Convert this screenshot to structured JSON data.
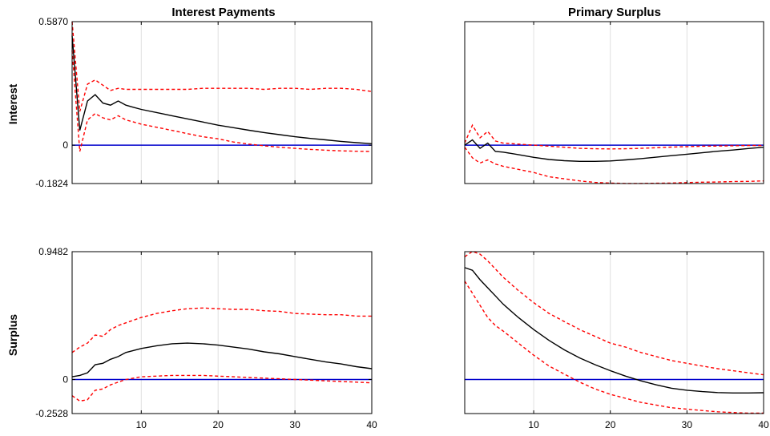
{
  "colors": {
    "median": "#000000",
    "bands": "#ff0000",
    "zero_line": "#0000cc",
    "grid": "#e0e0e0",
    "axes": "#000000",
    "background": "#ffffff"
  },
  "row_labels": [
    "Interest",
    "Surplus"
  ],
  "chart_data": [
    {
      "type": "line",
      "title": "Interest Payments",
      "row_label": "Interest",
      "xlim": [
        1,
        40
      ],
      "ylim": [
        -0.1824,
        0.587
      ],
      "xticks": [
        10,
        20,
        30,
        40
      ],
      "xtick_labels": [],
      "yticks": [
        0.587,
        0,
        -0.1824
      ],
      "ytick_labels": [
        "0.5870",
        "0",
        "-0.1824"
      ],
      "grid": "vertical",
      "series": [
        {
          "x": [
            1,
            2,
            3,
            4,
            5,
            6,
            7,
            8,
            9,
            10,
            12,
            14,
            16,
            18,
            20,
            22,
            24,
            26,
            28,
            30,
            32,
            34,
            36,
            38,
            40
          ],
          "values": [
            0.52,
            0.07,
            0.21,
            0.24,
            0.2,
            0.19,
            0.21,
            0.19,
            0.18,
            0.17,
            0.155,
            0.14,
            0.125,
            0.11,
            0.095,
            0.083,
            0.071,
            0.06,
            0.05,
            0.04,
            0.032,
            0.025,
            0.018,
            0.012,
            0.007
          ],
          "style": "solid"
        },
        {
          "x": [
            1,
            2,
            3,
            4,
            5,
            6,
            7,
            8,
            9,
            10,
            12,
            14,
            16,
            18,
            20,
            22,
            24,
            26,
            28,
            30,
            32,
            34,
            36,
            38,
            40
          ],
          "values": [
            0.587,
            0.16,
            0.29,
            0.31,
            0.285,
            0.26,
            0.27,
            0.265,
            0.265,
            0.265,
            0.265,
            0.265,
            0.265,
            0.27,
            0.27,
            0.27,
            0.27,
            0.265,
            0.27,
            0.27,
            0.265,
            0.27,
            0.27,
            0.265,
            0.255
          ],
          "style": "dashed"
        },
        {
          "x": [
            1,
            2,
            3,
            4,
            5,
            6,
            7,
            8,
            9,
            10,
            12,
            14,
            16,
            18,
            20,
            22,
            24,
            26,
            28,
            30,
            32,
            34,
            36,
            38,
            40
          ],
          "values": [
            0.45,
            -0.03,
            0.12,
            0.15,
            0.13,
            0.12,
            0.14,
            0.12,
            0.11,
            0.1,
            0.085,
            0.07,
            0.055,
            0.04,
            0.03,
            0.015,
            0.005,
            -0.003,
            -0.01,
            -0.015,
            -0.02,
            -0.024,
            -0.027,
            -0.029,
            -0.03
          ],
          "style": "dashed"
        }
      ],
      "zero_line": 0
    },
    {
      "type": "line",
      "title": "Primary Surplus",
      "row_label": "",
      "xlim": [
        1,
        40
      ],
      "ylim": [
        -0.1824,
        0.587
      ],
      "xticks": [
        10,
        20,
        30,
        40
      ],
      "xtick_labels": [],
      "yticks": [],
      "ytick_labels": [],
      "grid": "vertical",
      "series": [
        {
          "x": [
            1,
            2,
            3,
            4,
            5,
            6,
            8,
            10,
            12,
            14,
            16,
            18,
            20,
            22,
            24,
            26,
            28,
            30,
            32,
            34,
            36,
            38,
            40
          ],
          "values": [
            0,
            0.025,
            -0.015,
            0.01,
            -0.03,
            -0.033,
            -0.045,
            -0.058,
            -0.068,
            -0.074,
            -0.077,
            -0.077,
            -0.075,
            -0.07,
            -0.064,
            -0.057,
            -0.05,
            -0.043,
            -0.036,
            -0.029,
            -0.023,
            -0.016,
            -0.01
          ],
          "style": "solid"
        },
        {
          "x": [
            1,
            2,
            3,
            4,
            5,
            6,
            8,
            10,
            12,
            14,
            16,
            18,
            20,
            22,
            24,
            26,
            28,
            30,
            32,
            34,
            36,
            38,
            40
          ],
          "values": [
            0.01,
            0.095,
            0.035,
            0.065,
            0.02,
            0.01,
            0.005,
            0,
            -0.005,
            -0.01,
            -0.015,
            -0.017,
            -0.018,
            -0.017,
            -0.015,
            -0.012,
            -0.009,
            -0.007,
            -0.005,
            -0.004,
            -0.003,
            -0.002,
            -0.002
          ],
          "style": "dashed"
        },
        {
          "x": [
            1,
            2,
            3,
            4,
            5,
            6,
            8,
            10,
            12,
            14,
            16,
            18,
            20,
            22,
            24,
            26,
            28,
            30,
            32,
            34,
            36,
            38,
            40
          ],
          "values": [
            -0.01,
            -0.06,
            -0.085,
            -0.07,
            -0.09,
            -0.1,
            -0.115,
            -0.13,
            -0.15,
            -0.16,
            -0.17,
            -0.177,
            -0.18,
            -0.182,
            -0.182,
            -0.181,
            -0.18,
            -0.178,
            -0.176,
            -0.175,
            -0.173,
            -0.172,
            -0.17
          ],
          "style": "dashed"
        }
      ],
      "zero_line": 0
    },
    {
      "type": "line",
      "title": "",
      "row_label": "Surplus",
      "xlim": [
        1,
        40
      ],
      "ylim": [
        -0.2528,
        0.9482
      ],
      "xticks": [
        10,
        20,
        30,
        40
      ],
      "xtick_labels": [
        "10",
        "20",
        "30",
        "40"
      ],
      "yticks": [
        0.9482,
        0,
        -0.2528
      ],
      "ytick_labels": [
        "0.9482",
        "0",
        "-0.2528"
      ],
      "grid": "vertical",
      "series": [
        {
          "x": [
            1,
            2,
            3,
            4,
            5,
            6,
            7,
            8,
            10,
            12,
            14,
            16,
            18,
            20,
            22,
            24,
            26,
            28,
            30,
            32,
            34,
            36,
            38,
            40
          ],
          "values": [
            0.02,
            0.03,
            0.05,
            0.11,
            0.12,
            0.15,
            0.17,
            0.2,
            0.23,
            0.25,
            0.265,
            0.27,
            0.265,
            0.255,
            0.24,
            0.225,
            0.205,
            0.19,
            0.17,
            0.15,
            0.13,
            0.115,
            0.095,
            0.08
          ],
          "style": "solid"
        },
        {
          "x": [
            1,
            2,
            3,
            4,
            5,
            6,
            7,
            8,
            10,
            12,
            14,
            16,
            18,
            20,
            22,
            24,
            26,
            28,
            30,
            32,
            34,
            36,
            38,
            40
          ],
          "values": [
            0.2,
            0.24,
            0.27,
            0.33,
            0.32,
            0.37,
            0.4,
            0.42,
            0.46,
            0.49,
            0.51,
            0.525,
            0.53,
            0.525,
            0.52,
            0.52,
            0.51,
            0.505,
            0.49,
            0.485,
            0.48,
            0.48,
            0.47,
            0.47
          ],
          "style": "dashed"
        },
        {
          "x": [
            1,
            2,
            3,
            4,
            5,
            6,
            7,
            8,
            10,
            12,
            14,
            16,
            18,
            20,
            22,
            24,
            26,
            28,
            30,
            32,
            34,
            36,
            38,
            40
          ],
          "values": [
            -0.12,
            -0.16,
            -0.15,
            -0.08,
            -0.07,
            -0.04,
            -0.02,
            0,
            0.02,
            0.025,
            0.03,
            0.03,
            0.03,
            0.025,
            0.02,
            0.015,
            0.01,
            0.005,
            0,
            -0.005,
            -0.01,
            -0.015,
            -0.02,
            -0.025
          ],
          "style": "dashed"
        }
      ],
      "zero_line": 0
    },
    {
      "type": "line",
      "title": "",
      "row_label": "",
      "xlim": [
        1,
        40
      ],
      "ylim": [
        -0.2528,
        0.9482
      ],
      "xticks": [
        10,
        20,
        30,
        40
      ],
      "xtick_labels": [
        "10",
        "20",
        "30",
        "40"
      ],
      "yticks": [],
      "ytick_labels": [],
      "grid": "vertical",
      "series": [
        {
          "x": [
            1,
            2,
            3,
            4,
            5,
            6,
            8,
            10,
            12,
            14,
            16,
            18,
            20,
            22,
            24,
            26,
            28,
            30,
            32,
            34,
            36,
            38,
            40
          ],
          "values": [
            0.83,
            0.81,
            0.74,
            0.68,
            0.62,
            0.56,
            0.46,
            0.37,
            0.29,
            0.22,
            0.16,
            0.11,
            0.065,
            0.025,
            -0.01,
            -0.04,
            -0.065,
            -0.08,
            -0.09,
            -0.097,
            -0.1,
            -0.1,
            -0.098
          ],
          "style": "solid"
        },
        {
          "x": [
            1,
            2,
            3,
            4,
            5,
            6,
            8,
            10,
            12,
            14,
            16,
            18,
            20,
            22,
            24,
            26,
            28,
            30,
            32,
            34,
            36,
            38,
            40
          ],
          "values": [
            0.91,
            0.95,
            0.93,
            0.88,
            0.82,
            0.76,
            0.66,
            0.57,
            0.49,
            0.43,
            0.37,
            0.32,
            0.27,
            0.24,
            0.2,
            0.17,
            0.14,
            0.12,
            0.1,
            0.08,
            0.065,
            0.05,
            0.035
          ],
          "style": "dashed"
        },
        {
          "x": [
            1,
            2,
            3,
            4,
            5,
            6,
            8,
            10,
            12,
            14,
            16,
            18,
            20,
            22,
            24,
            26,
            28,
            30,
            32,
            34,
            36,
            38,
            40
          ],
          "values": [
            0.73,
            0.64,
            0.55,
            0.46,
            0.4,
            0.36,
            0.27,
            0.18,
            0.1,
            0.04,
            -0.02,
            -0.07,
            -0.11,
            -0.14,
            -0.17,
            -0.19,
            -0.21,
            -0.22,
            -0.23,
            -0.24,
            -0.245,
            -0.25,
            -0.25
          ],
          "style": "dashed"
        }
      ],
      "zero_line": 0
    }
  ]
}
